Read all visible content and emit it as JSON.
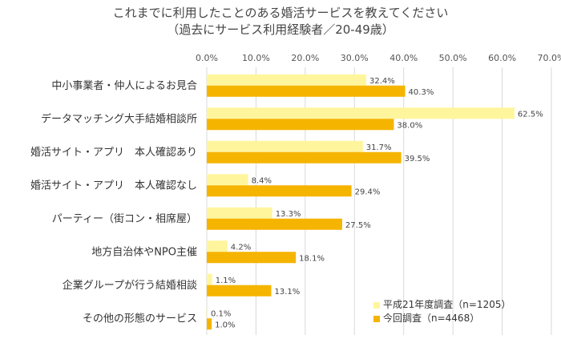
{
  "chart_data": {
    "type": "bar",
    "orientation": "horizontal",
    "title": "これまでに利用したことのある婚活サービスを教えてください",
    "subtitle": "（過去にサービス利用経験者／20-49歳）",
    "xlim": [
      0,
      70
    ],
    "ticks": [
      0,
      10,
      20,
      30,
      40,
      50,
      60,
      70
    ],
    "tick_labels": [
      "0.0%",
      "10.0%",
      "20.0%",
      "30.0%",
      "40.0%",
      "50.0%",
      "60.0%",
      "70.0%"
    ],
    "grid": true,
    "legend_position": "bottom-right",
    "categories": [
      "中小事業者・仲人によるお見合",
      "データマッチング大手結婚相談所",
      "婚活サイト・アプリ　本人確認あり",
      "婚活サイト・アプリ　本人確認なし",
      "パーティー（街コン・相席屋）",
      "地方自治体やNPO主催",
      "企業グループが行う結婚相談",
      "その他の形態のサービス"
    ],
    "series": [
      {
        "name": "平成21年度調査（n=1205）",
        "color": "#FFF59D",
        "values": [
          32.4,
          62.5,
          31.7,
          8.4,
          13.3,
          4.2,
          1.1,
          0.1
        ],
        "labels": [
          "32.4%",
          "62.5%",
          "31.7%",
          "8.4%",
          "13.3%",
          "4.2%",
          "1.1%",
          "0.1%"
        ]
      },
      {
        "name": "今回調査（n=4468）",
        "color": "#F5B400",
        "values": [
          40.3,
          38.0,
          39.5,
          29.4,
          27.5,
          18.1,
          13.1,
          1.0
        ],
        "labels": [
          "40.3%",
          "38.0%",
          "39.5%",
          "29.4%",
          "27.5%",
          "18.1%",
          "13.1%",
          "1.0%"
        ]
      }
    ]
  }
}
